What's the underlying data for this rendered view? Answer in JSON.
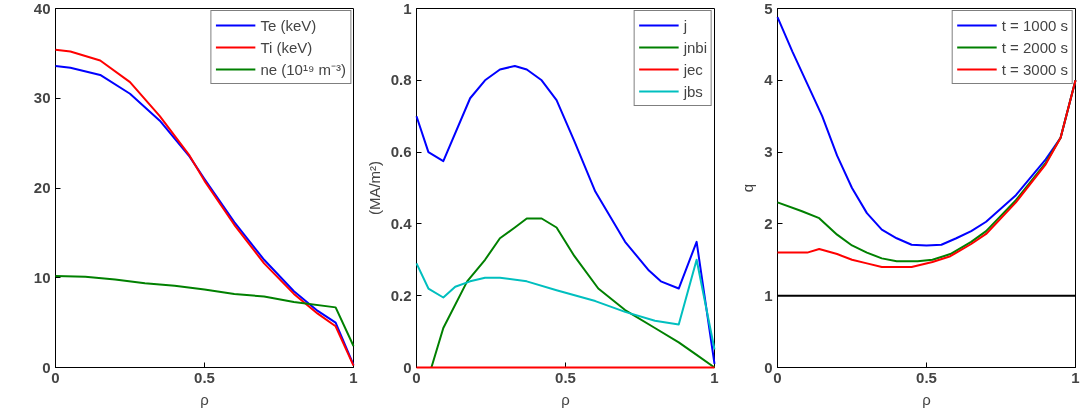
{
  "chart_data": [
    {
      "type": "line",
      "xlabel": "ρ",
      "xlim": [
        0,
        1
      ],
      "ylim": [
        0,
        40
      ],
      "xticks": [
        0,
        0.5,
        1
      ],
      "yticks": [
        0,
        10,
        20,
        30,
        40
      ],
      "grid": false,
      "legend": "top right",
      "marker": "none",
      "line_style": "solid",
      "series": [
        {
          "name": "Te (keV)",
          "color": "#0000ff",
          "x": [
            0,
            0.05,
            0.15,
            0.25,
            0.35,
            0.45,
            0.5,
            0.6,
            0.7,
            0.8,
            0.88,
            0.94,
            1
          ],
          "values": [
            33.6,
            33.4,
            32.6,
            30.5,
            27.5,
            23.5,
            21,
            16.2,
            12,
            8.5,
            6.3,
            5,
            0.3
          ]
        },
        {
          "name": "Ti (keV)",
          "color": "#ff0000",
          "x": [
            0,
            0.05,
            0.15,
            0.25,
            0.35,
            0.45,
            0.5,
            0.6,
            0.7,
            0.8,
            0.88,
            0.94,
            1
          ],
          "values": [
            35.4,
            35.2,
            34.2,
            31.8,
            28,
            23.6,
            20.8,
            15.9,
            11.6,
            8.2,
            6,
            4.6,
            0.2
          ]
        },
        {
          "name": "ne (10¹⁹ m⁻³)",
          "color": "#008000",
          "x": [
            0,
            0.1,
            0.2,
            0.3,
            0.4,
            0.5,
            0.6,
            0.7,
            0.8,
            0.94,
            1
          ],
          "values": [
            10.2,
            10.1,
            9.8,
            9.4,
            9.1,
            8.7,
            8.2,
            7.9,
            7.3,
            6.7,
            2.4
          ]
        }
      ]
    },
    {
      "type": "line",
      "xlabel": "ρ",
      "ylabel": "(MA/m²)",
      "xlim": [
        0,
        1
      ],
      "ylim": [
        0,
        1
      ],
      "xticks": [
        0,
        0.5,
        1
      ],
      "yticks": [
        0,
        0.2,
        0.4,
        0.6,
        0.8,
        1
      ],
      "grid": false,
      "legend": "top right",
      "marker": "none",
      "line_style": "solid",
      "series": [
        {
          "name": "j",
          "color": "#0000ff",
          "x": [
            0,
            0.04,
            0.09,
            0.18,
            0.23,
            0.28,
            0.33,
            0.37,
            0.42,
            0.47,
            0.53,
            0.6,
            0.7,
            0.78,
            0.82,
            0.88,
            0.94,
            1
          ],
          "values": [
            0.7,
            0.6,
            0.575,
            0.75,
            0.8,
            0.83,
            0.84,
            0.83,
            0.8,
            0.745,
            0.63,
            0.49,
            0.35,
            0.27,
            0.24,
            0.22,
            0.35,
            0.01
          ]
        },
        {
          "name": "jnbi",
          "color": "#008000",
          "x": [
            0.05,
            0.09,
            0.17,
            0.23,
            0.28,
            0.33,
            0.37,
            0.42,
            0.47,
            0.53,
            0.61,
            0.7,
            0.8,
            0.88,
            0.94,
            1
          ],
          "values": [
            0,
            0.11,
            0.24,
            0.3,
            0.36,
            0.39,
            0.415,
            0.415,
            0.39,
            0.31,
            0.22,
            0.16,
            0.11,
            0.07,
            0.035,
            0
          ]
        },
        {
          "name": "jec",
          "color": "#ff0000",
          "x": [
            0,
            1
          ],
          "values": [
            0,
            0
          ]
        },
        {
          "name": "jbs",
          "color": "#00bfbf",
          "x": [
            0,
            0.04,
            0.09,
            0.13,
            0.18,
            0.23,
            0.28,
            0.37,
            0.47,
            0.6,
            0.7,
            0.8,
            0.88,
            0.94,
            1
          ],
          "values": [
            0.29,
            0.22,
            0.195,
            0.225,
            0.24,
            0.25,
            0.25,
            0.24,
            0.215,
            0.185,
            0.155,
            0.13,
            0.12,
            0.3,
            0.05
          ]
        }
      ]
    },
    {
      "type": "line",
      "xlabel": "ρ",
      "ylabel": "q",
      "xlim": [
        0,
        1
      ],
      "ylim": [
        0,
        5
      ],
      "xticks": [
        0,
        0.5,
        1
      ],
      "yticks": [
        0,
        1,
        2,
        3,
        4,
        5
      ],
      "grid": false,
      "legend": "top right",
      "marker": "none",
      "line_style": "solid",
      "ref_lines": [
        {
          "axis": "y",
          "value": 1,
          "color": "#000000"
        }
      ],
      "series": [
        {
          "name": "t = 1000 s",
          "color": "#0000ff",
          "x": [
            0,
            0.05,
            0.1,
            0.15,
            0.2,
            0.25,
            0.3,
            0.35,
            0.4,
            0.45,
            0.5,
            0.55,
            0.6,
            0.65,
            0.7,
            0.8,
            0.9,
            0.95,
            1
          ],
          "values": [
            4.88,
            4.4,
            3.95,
            3.5,
            2.95,
            2.5,
            2.15,
            1.92,
            1.8,
            1.71,
            1.7,
            1.71,
            1.8,
            1.9,
            2.03,
            2.4,
            2.9,
            3.2,
            4.0
          ]
        },
        {
          "name": "t = 2000 s",
          "color": "#008000",
          "x": [
            0,
            0.08,
            0.14,
            0.2,
            0.25,
            0.3,
            0.35,
            0.4,
            0.47,
            0.52,
            0.58,
            0.65,
            0.7,
            0.8,
            0.9,
            0.95,
            1
          ],
          "values": [
            2.3,
            2.18,
            2.08,
            1.85,
            1.7,
            1.6,
            1.52,
            1.48,
            1.48,
            1.5,
            1.58,
            1.75,
            1.9,
            2.33,
            2.85,
            3.2,
            4.0
          ]
        },
        {
          "name": "t = 3000 s",
          "color": "#ff0000",
          "x": [
            0,
            0.1,
            0.14,
            0.2,
            0.25,
            0.3,
            0.35,
            0.45,
            0.52,
            0.58,
            0.65,
            0.7,
            0.8,
            0.9,
            0.95,
            1
          ],
          "values": [
            1.6,
            1.6,
            1.65,
            1.58,
            1.5,
            1.45,
            1.4,
            1.4,
            1.47,
            1.55,
            1.72,
            1.86,
            2.3,
            2.83,
            3.2,
            4.0
          ]
        }
      ]
    }
  ]
}
